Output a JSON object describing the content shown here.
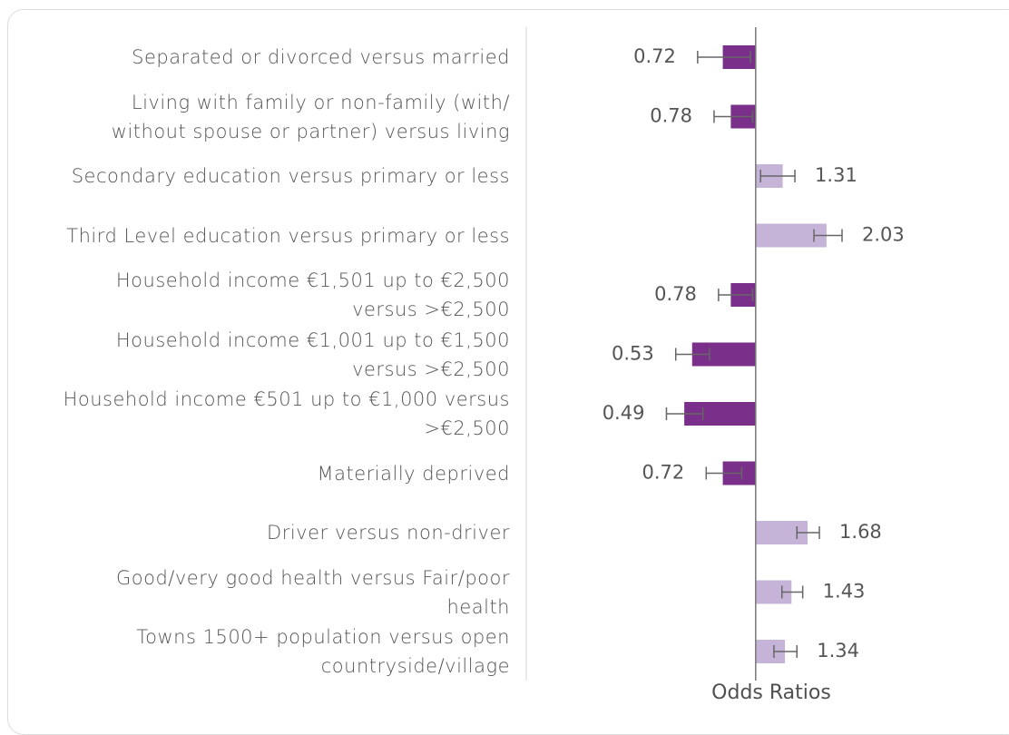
{
  "chart_data": {
    "type": "bar",
    "orientation": "horizontal",
    "xlabel": "Odds Ratios",
    "log_x": true,
    "xlim": [
      0.3,
      3
    ],
    "reference": 1,
    "categories": [
      "Separated or divorced versus married",
      "Living with family or non-family (with/\nwithout spouse or partner) versus living",
      "Secondary education versus primary or less",
      "Third Level education versus primary or less",
      "Household income €1,501 up to €2,500\nversus >€2,500",
      "Household income €1,001 up to €1,500\nversus >€2,500",
      "Household income €501 up to €1,000 versus\n>€2,500",
      "Materially deprived",
      "Driver versus non-driver",
      "Good/very good health versus Fair/poor\nhealth",
      "Towns 1500+ population versus open\ncountryside/village"
    ],
    "values": [
      0.72,
      0.78,
      1.31,
      2.03,
      0.78,
      0.53,
      0.49,
      0.72,
      1.68,
      1.43,
      1.34
    ],
    "ci": [
      [
        0.56,
        0.95
      ],
      [
        0.66,
        0.97
      ],
      [
        1.05,
        1.48
      ],
      [
        1.79,
        2.37
      ],
      [
        0.69,
        0.97
      ],
      [
        0.45,
        0.63
      ],
      [
        0.41,
        0.59
      ],
      [
        0.61,
        0.87
      ],
      [
        1.51,
        1.89
      ],
      [
        1.3,
        1.6
      ],
      [
        1.2,
        1.51
      ]
    ],
    "colors": {
      "below": "#7a2f8a",
      "above": "#c6b4d8"
    }
  }
}
